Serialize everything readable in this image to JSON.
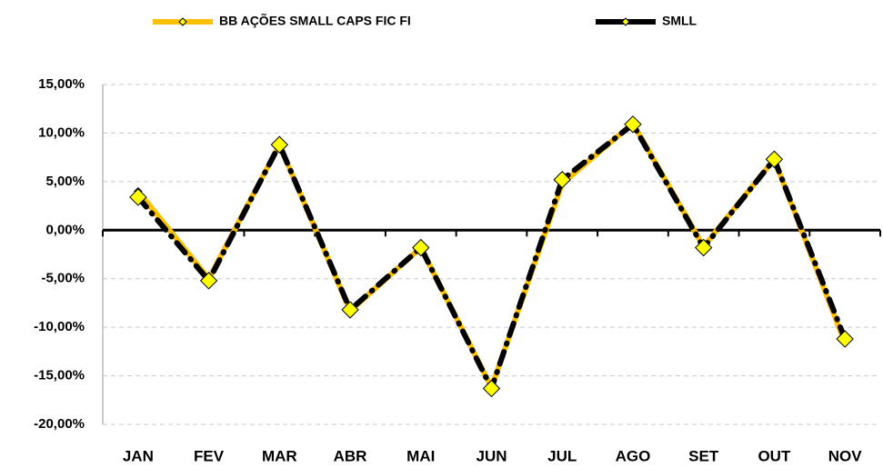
{
  "chart_data": {
    "type": "line",
    "categories": [
      "JAN",
      "FEV",
      "MAR",
      "ABR",
      "MAI",
      "JUN",
      "JUL",
      "AGO",
      "SET",
      "OUT",
      "NOV"
    ],
    "series": [
      {
        "name": "BB AÇÕES SMALL CAPS FIC FI",
        "color": "#FFC000",
        "marker_color": "#FFFF00",
        "values": [
          4.0,
          -5.0,
          8.8,
          -8.3,
          -1.8,
          -16.2,
          4.8,
          11.0,
          -1.7,
          7.3,
          -11.6
        ]
      },
      {
        "name": "SMLL",
        "color": "#000000",
        "marker_color": "#FFFF00",
        "values": [
          3.4,
          -5.2,
          8.8,
          -8.2,
          -1.8,
          -16.3,
          5.2,
          10.9,
          -1.8,
          7.3,
          -11.2
        ]
      }
    ],
    "ylim": [
      -20,
      15
    ],
    "yticks": [
      {
        "value": -20,
        "label": "-20,00%"
      },
      {
        "value": -15,
        "label": "-15,00%"
      },
      {
        "value": -10,
        "label": "-10,00%"
      },
      {
        "value": -5,
        "label": "-5,00%"
      },
      {
        "value": 0,
        "label": "0,00%"
      },
      {
        "value": 5,
        "label": "5,00%"
      },
      {
        "value": 10,
        "label": "10,00%"
      },
      {
        "value": 15,
        "label": "15,00%"
      }
    ],
    "grid": true,
    "legend": "top"
  }
}
